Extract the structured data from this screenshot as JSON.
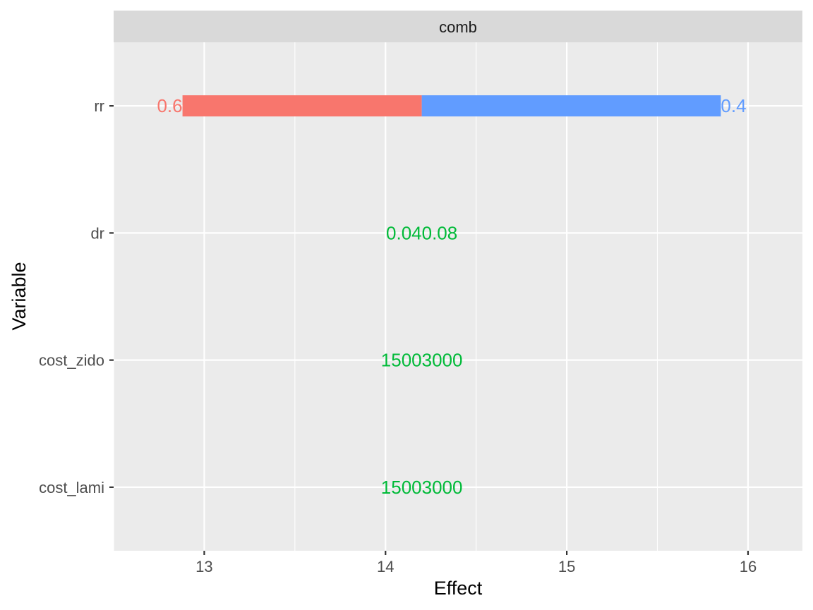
{
  "chart_data": {
    "type": "bar",
    "orientation": "horizontal",
    "facet": "comb",
    "xlabel": "Effect",
    "ylabel": "Variable",
    "xlim": [
      12.5,
      16.3
    ],
    "x_ticks": [
      "13",
      "14",
      "15",
      "16"
    ],
    "x_tick_values": [
      13,
      14,
      15,
      16
    ],
    "categories": [
      "rr",
      "dr",
      "cost_zido",
      "cost_lami"
    ],
    "baseline": 14.2,
    "bars": [
      {
        "variable": "rr",
        "low": 12.88,
        "high": 15.85,
        "low_label": "0.6",
        "high_label": "0.4"
      }
    ],
    "center_labels": [
      {
        "variable": "dr",
        "text": "0.040.08"
      },
      {
        "variable": "cost_zido",
        "text": "15003000"
      },
      {
        "variable": "cost_lami",
        "text": "15003000"
      }
    ],
    "colors": {
      "low": "#F8766D",
      "high": "#619CFF",
      "center": "#00BA38"
    },
    "legend": "none",
    "grid": true
  }
}
